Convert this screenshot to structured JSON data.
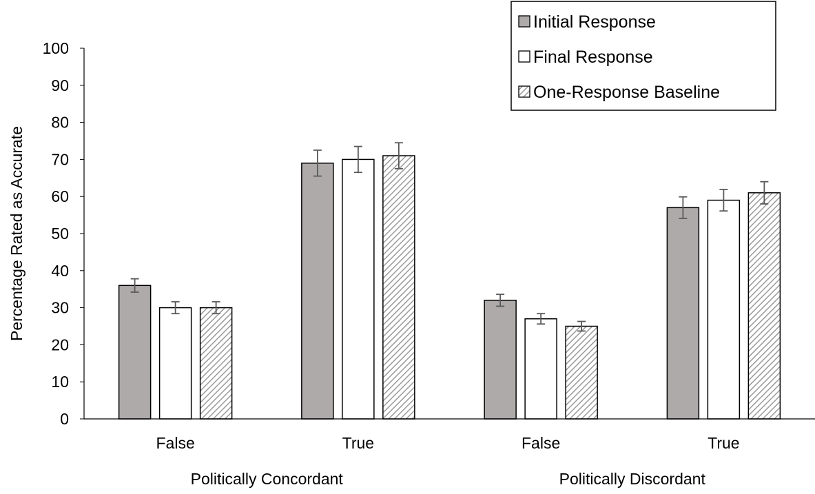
{
  "chart_data": {
    "type": "bar",
    "title": "",
    "xlabel": "",
    "ylabel": "Percentage Rated as Accurate",
    "ylim": [
      0,
      100
    ],
    "yticks": [
      "0",
      "10",
      "20",
      "30",
      "40",
      "50",
      "60",
      "70",
      "80",
      "90",
      "100"
    ],
    "groups": [
      "Politically Concordant",
      "Politically Discordant"
    ],
    "categories": [
      "False",
      "True",
      "False",
      "True"
    ],
    "series": [
      {
        "name": "Initial Response",
        "values": [
          36,
          69,
          32,
          57
        ],
        "errors": [
          1.8,
          3.5,
          1.6,
          2.9
        ],
        "fill": "#aeaaaa"
      },
      {
        "name": "Final Response",
        "values": [
          30,
          70,
          27,
          59
        ],
        "errors": [
          1.6,
          3.5,
          1.4,
          2.9
        ],
        "fill": "#ffffff"
      },
      {
        "name": "One-Response Baseline",
        "values": [
          30,
          71,
          25,
          61
        ],
        "errors": [
          1.6,
          3.5,
          1.3,
          3.0
        ],
        "fill": "hatched"
      }
    ],
    "legend_position": "top-right",
    "colors": {
      "bar_edge": "#000000",
      "error_bar": "#595959",
      "axis": "#000000"
    }
  }
}
